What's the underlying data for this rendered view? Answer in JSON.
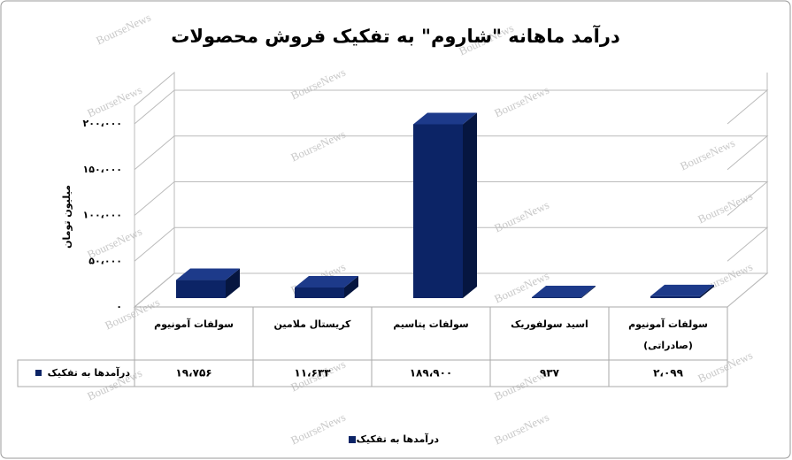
{
  "chart_data": {
    "type": "bar3d",
    "title": "درآمد ماهانه \"شاروم\" به تفکیک فروش محصولات",
    "y_label": "میلیون تومان",
    "watermark": "BourseNews",
    "categories": [
      "سولفات آمونیوم",
      "کریستال ملامین",
      "سولفات پتاسیم",
      "اسید سولفوریک",
      "سولفات آمونیوم (صادراتی)"
    ],
    "series": [
      {
        "name": "درآمدها به تفکیک",
        "color": "#0c2466",
        "values": [
          19756,
          11633,
          189900,
          937,
          2099
        ],
        "value_labels": [
          "۱۹،۷۵۶",
          "۱۱،۶۳۳",
          "۱۸۹،۹۰۰",
          "۹۳۷",
          "۲،۰۹۹"
        ]
      }
    ],
    "ylim": [
      0,
      200000
    ],
    "yticks": [
      {
        "value": 0,
        "label": "۰"
      },
      {
        "value": 50000,
        "label": "۵۰،۰۰۰"
      },
      {
        "value": 100000,
        "label": "۱۰۰،۰۰۰"
      },
      {
        "value": 150000,
        "label": "۱۵۰،۰۰۰"
      },
      {
        "value": 200000,
        "label": "۲۰۰،۰۰۰"
      }
    ],
    "grid": true,
    "legend": "bottom"
  }
}
